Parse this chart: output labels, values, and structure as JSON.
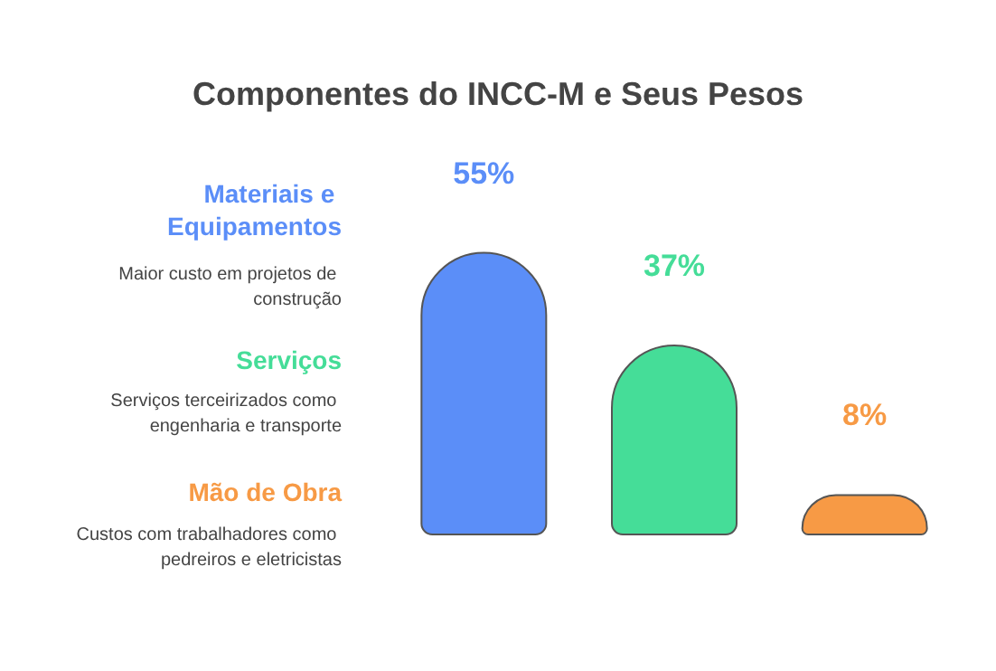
{
  "chart_data": {
    "type": "bar",
    "title": "Componentes do INCC-M e Seus Pesos",
    "categories": [
      null,
      null,
      null
    ],
    "values": [
      55,
      37,
      8
    ],
    "colors": [
      "#5b8ef8",
      "#45dd98",
      "#f79a45"
    ],
    "value_labels": [
      "55%",
      "37%",
      "8%"
    ],
    "annotations": [
      "Materiais e Equipamentos",
      "Maior custo em projetos de construção",
      "Serviços",
      "Serviços terceirizados como engenharia e transporte",
      "Mão de Obra",
      "Custos com trabalhadores como pedreiros e eletricistas"
    ]
  }
}
